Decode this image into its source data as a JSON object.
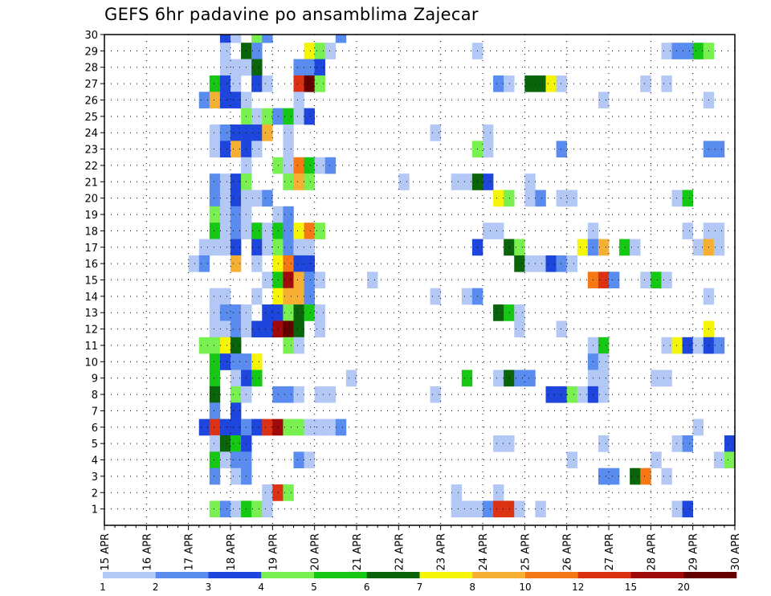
{
  "chart_data": {
    "type": "heatmap",
    "title": "GEFS 6hr padavine po ansamblima Zajecar",
    "xlabel": "",
    "ylabel": "",
    "x_tick_labels": [
      "15 APR",
      "16 APR",
      "17 APR",
      "18 APR",
      "19 APR",
      "20 APR",
      "21 APR",
      "22 APR",
      "23 APR",
      "24 APR",
      "25 APR",
      "26 APR",
      "27 APR",
      "28 APR",
      "29 APR",
      "30 APR"
    ],
    "y_tick_labels": [
      "1",
      "2",
      "3",
      "4",
      "5",
      "6",
      "7",
      "8",
      "9",
      "10",
      "11",
      "12",
      "13",
      "14",
      "15",
      "16",
      "17",
      "18",
      "19",
      "20",
      "21",
      "22",
      "23",
      "24",
      "25",
      "26",
      "27",
      "28",
      "29",
      "30"
    ],
    "x_range": [
      "15 APR",
      "30 APR"
    ],
    "time_step_hours": 6,
    "members_axis": [
      0,
      30
    ],
    "grid": true,
    "colorbar": {
      "position": "bottom",
      "tick_labels": [
        "1",
        "2",
        "3",
        "4",
        "5",
        "6",
        "7",
        "8",
        "10",
        "12",
        "15",
        "20"
      ],
      "colors": [
        "#b4c8f5",
        "#5a8cf0",
        "#1e46dc",
        "#78f050",
        "#14c814",
        "#0a640a",
        "#f5f50a",
        "#f5af32",
        "#f57814",
        "#dc3214",
        "#a00a0a",
        "#640000"
      ]
    },
    "colors": {
      "frame": "#000000",
      "grid": "#000000"
    },
    "cells": [
      [
        11,
        30,
        3
      ],
      [
        12,
        30,
        1
      ],
      [
        14,
        30,
        4
      ],
      [
        15,
        30,
        2
      ],
      [
        22,
        30,
        2
      ],
      [
        11,
        29,
        1
      ],
      [
        13,
        29,
        6
      ],
      [
        14,
        29,
        2
      ],
      [
        19,
        29,
        7
      ],
      [
        20,
        29,
        4
      ],
      [
        21,
        29,
        1
      ],
      [
        35,
        29,
        1
      ],
      [
        53,
        29,
        1
      ],
      [
        54,
        29,
        2
      ],
      [
        55,
        29,
        2
      ],
      [
        56,
        29,
        5
      ],
      [
        57,
        29,
        4
      ],
      [
        11,
        28,
        1
      ],
      [
        12,
        28,
        1
      ],
      [
        13,
        28,
        1
      ],
      [
        14,
        28,
        6
      ],
      [
        18,
        28,
        2
      ],
      [
        19,
        28,
        2
      ],
      [
        20,
        28,
        3
      ],
      [
        10,
        27,
        5
      ],
      [
        11,
        27,
        3
      ],
      [
        12,
        27,
        1
      ],
      [
        14,
        27,
        3
      ],
      [
        15,
        27,
        1
      ],
      [
        18,
        27,
        10
      ],
      [
        19,
        27,
        12
      ],
      [
        20,
        27,
        4
      ],
      [
        37,
        27,
        2
      ],
      [
        38,
        27,
        1
      ],
      [
        40,
        27,
        6
      ],
      [
        41,
        27,
        6
      ],
      [
        42,
        27,
        7
      ],
      [
        43,
        27,
        1
      ],
      [
        51,
        27,
        1
      ],
      [
        53,
        27,
        1
      ],
      [
        9,
        26,
        2
      ],
      [
        10,
        26,
        8
      ],
      [
        11,
        26,
        3
      ],
      [
        12,
        26,
        3
      ],
      [
        13,
        26,
        1
      ],
      [
        18,
        26,
        1
      ],
      [
        47,
        26,
        1
      ],
      [
        57,
        26,
        1
      ],
      [
        13,
        25,
        4
      ],
      [
        14,
        25,
        1
      ],
      [
        15,
        25,
        4
      ],
      [
        16,
        25,
        2
      ],
      [
        17,
        25,
        5
      ],
      [
        18,
        25,
        1
      ],
      [
        19,
        25,
        3
      ],
      [
        10,
        24,
        1
      ],
      [
        11,
        24,
        2
      ],
      [
        12,
        24,
        3
      ],
      [
        13,
        24,
        3
      ],
      [
        14,
        24,
        3
      ],
      [
        15,
        24,
        8
      ],
      [
        17,
        24,
        1
      ],
      [
        31,
        24,
        1
      ],
      [
        36,
        24,
        1
      ],
      [
        10,
        23,
        1
      ],
      [
        11,
        23,
        3
      ],
      [
        12,
        23,
        8
      ],
      [
        13,
        23,
        3
      ],
      [
        14,
        23,
        1
      ],
      [
        17,
        23,
        1
      ],
      [
        35,
        23,
        4
      ],
      [
        36,
        23,
        1
      ],
      [
        43,
        23,
        2
      ],
      [
        57,
        23,
        2
      ],
      [
        58,
        23,
        2
      ],
      [
        13,
        22,
        1
      ],
      [
        16,
        22,
        4
      ],
      [
        17,
        22,
        1
      ],
      [
        18,
        22,
        9
      ],
      [
        19,
        22,
        5
      ],
      [
        20,
        22,
        1
      ],
      [
        21,
        22,
        2
      ],
      [
        10,
        21,
        2
      ],
      [
        11,
        21,
        1
      ],
      [
        12,
        21,
        3
      ],
      [
        13,
        21,
        4
      ],
      [
        17,
        21,
        4
      ],
      [
        18,
        21,
        8
      ],
      [
        19,
        21,
        4
      ],
      [
        28,
        21,
        1
      ],
      [
        33,
        21,
        1
      ],
      [
        34,
        21,
        1
      ],
      [
        35,
        21,
        6
      ],
      [
        36,
        21,
        3
      ],
      [
        40,
        21,
        1
      ],
      [
        10,
        20,
        2
      ],
      [
        11,
        20,
        1
      ],
      [
        12,
        20,
        3
      ],
      [
        13,
        20,
        1
      ],
      [
        14,
        20,
        1
      ],
      [
        15,
        20,
        2
      ],
      [
        37,
        20,
        7
      ],
      [
        38,
        20,
        4
      ],
      [
        40,
        20,
        1
      ],
      [
        41,
        20,
        2
      ],
      [
        43,
        20,
        1
      ],
      [
        44,
        20,
        1
      ],
      [
        54,
        20,
        1
      ],
      [
        55,
        20,
        5
      ],
      [
        10,
        19,
        4
      ],
      [
        11,
        19,
        1
      ],
      [
        12,
        19,
        2
      ],
      [
        13,
        19,
        1
      ],
      [
        16,
        19,
        1
      ],
      [
        17,
        19,
        2
      ],
      [
        10,
        18,
        5
      ],
      [
        11,
        18,
        1
      ],
      [
        12,
        18,
        2
      ],
      [
        13,
        18,
        1
      ],
      [
        14,
        18,
        5
      ],
      [
        15,
        18,
        1
      ],
      [
        16,
        18,
        5
      ],
      [
        17,
        18,
        2
      ],
      [
        18,
        18,
        7
      ],
      [
        19,
        18,
        9
      ],
      [
        20,
        18,
        4
      ],
      [
        36,
        18,
        1
      ],
      [
        37,
        18,
        1
      ],
      [
        46,
        18,
        1
      ],
      [
        55,
        18,
        1
      ],
      [
        57,
        18,
        1
      ],
      [
        58,
        18,
        1
      ],
      [
        9,
        17,
        1
      ],
      [
        10,
        17,
        1
      ],
      [
        11,
        17,
        1
      ],
      [
        12,
        17,
        3
      ],
      [
        14,
        17,
        3
      ],
      [
        15,
        17,
        1
      ],
      [
        16,
        17,
        4
      ],
      [
        17,
        17,
        2
      ],
      [
        18,
        17,
        1
      ],
      [
        19,
        17,
        1
      ],
      [
        35,
        17,
        3
      ],
      [
        38,
        17,
        6
      ],
      [
        39,
        17,
        4
      ],
      [
        45,
        17,
        7
      ],
      [
        46,
        17,
        2
      ],
      [
        47,
        17,
        8
      ],
      [
        49,
        17,
        5
      ],
      [
        50,
        17,
        1
      ],
      [
        56,
        17,
        1
      ],
      [
        57,
        17,
        8
      ],
      [
        58,
        17,
        1
      ],
      [
        8,
        16,
        1
      ],
      [
        9,
        16,
        2
      ],
      [
        12,
        16,
        8
      ],
      [
        14,
        16,
        1
      ],
      [
        16,
        16,
        7
      ],
      [
        17,
        16,
        9
      ],
      [
        18,
        16,
        3
      ],
      [
        19,
        16,
        3
      ],
      [
        39,
        16,
        6
      ],
      [
        40,
        16,
        1
      ],
      [
        41,
        16,
        1
      ],
      [
        42,
        16,
        3
      ],
      [
        43,
        16,
        2
      ],
      [
        44,
        16,
        1
      ],
      [
        15,
        15,
        1
      ],
      [
        16,
        15,
        5
      ],
      [
        17,
        15,
        11
      ],
      [
        18,
        15,
        8
      ],
      [
        19,
        15,
        2
      ],
      [
        20,
        15,
        1
      ],
      [
        25,
        15,
        1
      ],
      [
        46,
        15,
        9
      ],
      [
        47,
        15,
        10
      ],
      [
        48,
        15,
        2
      ],
      [
        51,
        15,
        1
      ],
      [
        52,
        15,
        5
      ],
      [
        53,
        15,
        1
      ],
      [
        10,
        14,
        1
      ],
      [
        11,
        14,
        1
      ],
      [
        14,
        14,
        1
      ],
      [
        16,
        14,
        7
      ],
      [
        17,
        14,
        8
      ],
      [
        18,
        14,
        8
      ],
      [
        19,
        14,
        2
      ],
      [
        31,
        14,
        1
      ],
      [
        34,
        14,
        1
      ],
      [
        35,
        14,
        2
      ],
      [
        57,
        14,
        1
      ],
      [
        10,
        13,
        1
      ],
      [
        11,
        13,
        2
      ],
      [
        12,
        13,
        2
      ],
      [
        13,
        13,
        1
      ],
      [
        15,
        13,
        3
      ],
      [
        16,
        13,
        3
      ],
      [
        17,
        13,
        4
      ],
      [
        18,
        13,
        6
      ],
      [
        19,
        13,
        5
      ],
      [
        20,
        13,
        1
      ],
      [
        37,
        13,
        6
      ],
      [
        38,
        13,
        5
      ],
      [
        39,
        13,
        1
      ],
      [
        10,
        12,
        1
      ],
      [
        11,
        12,
        1
      ],
      [
        12,
        12,
        2
      ],
      [
        13,
        12,
        1
      ],
      [
        14,
        12,
        3
      ],
      [
        15,
        12,
        3
      ],
      [
        16,
        12,
        11
      ],
      [
        17,
        12,
        12
      ],
      [
        18,
        12,
        6
      ],
      [
        20,
        12,
        1
      ],
      [
        39,
        12,
        1
      ],
      [
        43,
        12,
        1
      ],
      [
        57,
        12,
        7
      ],
      [
        9,
        11,
        4
      ],
      [
        10,
        11,
        4
      ],
      [
        11,
        11,
        7
      ],
      [
        12,
        11,
        6
      ],
      [
        17,
        11,
        4
      ],
      [
        18,
        11,
        1
      ],
      [
        46,
        11,
        1
      ],
      [
        47,
        11,
        5
      ],
      [
        53,
        11,
        1
      ],
      [
        54,
        11,
        7
      ],
      [
        55,
        11,
        3
      ],
      [
        56,
        11,
        1
      ],
      [
        57,
        11,
        3
      ],
      [
        58,
        11,
        2
      ],
      [
        10,
        10,
        5
      ],
      [
        11,
        10,
        3
      ],
      [
        12,
        10,
        2
      ],
      [
        13,
        10,
        2
      ],
      [
        14,
        10,
        7
      ],
      [
        46,
        10,
        2
      ],
      [
        47,
        10,
        1
      ],
      [
        10,
        9,
        5
      ],
      [
        12,
        9,
        1
      ],
      [
        13,
        9,
        3
      ],
      [
        14,
        9,
        5
      ],
      [
        23,
        9,
        1
      ],
      [
        34,
        9,
        5
      ],
      [
        37,
        9,
        1
      ],
      [
        38,
        9,
        6
      ],
      [
        39,
        9,
        2
      ],
      [
        40,
        9,
        2
      ],
      [
        52,
        9,
        1
      ],
      [
        53,
        9,
        1
      ],
      [
        46,
        9,
        1
      ],
      [
        47,
        9,
        1
      ],
      [
        10,
        8,
        6
      ],
      [
        12,
        8,
        4
      ],
      [
        13,
        8,
        1
      ],
      [
        16,
        8,
        2
      ],
      [
        17,
        8,
        2
      ],
      [
        18,
        8,
        1
      ],
      [
        20,
        8,
        1
      ],
      [
        21,
        8,
        1
      ],
      [
        31,
        8,
        1
      ],
      [
        42,
        8,
        3
      ],
      [
        43,
        8,
        3
      ],
      [
        44,
        8,
        4
      ],
      [
        45,
        8,
        1
      ],
      [
        46,
        8,
        3
      ],
      [
        47,
        8,
        1
      ],
      [
        10,
        7,
        2
      ],
      [
        12,
        7,
        3
      ],
      [
        9,
        6,
        3
      ],
      [
        10,
        6,
        10
      ],
      [
        11,
        6,
        3
      ],
      [
        12,
        6,
        3
      ],
      [
        13,
        6,
        2
      ],
      [
        14,
        6,
        3
      ],
      [
        15,
        6,
        10
      ],
      [
        16,
        6,
        11
      ],
      [
        17,
        6,
        4
      ],
      [
        18,
        6,
        4
      ],
      [
        19,
        6,
        1
      ],
      [
        20,
        6,
        1
      ],
      [
        21,
        6,
        1
      ],
      [
        22,
        6,
        2
      ],
      [
        56,
        6,
        1
      ],
      [
        10,
        5,
        1
      ],
      [
        11,
        5,
        6
      ],
      [
        12,
        5,
        5
      ],
      [
        13,
        5,
        3
      ],
      [
        37,
        5,
        1
      ],
      [
        38,
        5,
        1
      ],
      [
        47,
        5,
        1
      ],
      [
        54,
        5,
        1
      ],
      [
        55,
        5,
        2
      ],
      [
        59,
        5,
        3
      ],
      [
        10,
        4,
        5
      ],
      [
        11,
        4,
        1
      ],
      [
        12,
        4,
        2
      ],
      [
        13,
        4,
        2
      ],
      [
        18,
        4,
        2
      ],
      [
        19,
        4,
        1
      ],
      [
        44,
        4,
        1
      ],
      [
        52,
        4,
        1
      ],
      [
        58,
        4,
        1
      ],
      [
        59,
        4,
        4
      ],
      [
        10,
        3,
        2
      ],
      [
        12,
        3,
        1
      ],
      [
        13,
        3,
        2
      ],
      [
        47,
        3,
        2
      ],
      [
        48,
        3,
        2
      ],
      [
        50,
        3,
        6
      ],
      [
        51,
        3,
        9
      ],
      [
        53,
        3,
        1
      ],
      [
        15,
        2,
        1
      ],
      [
        16,
        2,
        10
      ],
      [
        17,
        2,
        4
      ],
      [
        33,
        2,
        1
      ],
      [
        37,
        2,
        1
      ],
      [
        10,
        1,
        4
      ],
      [
        11,
        1,
        2
      ],
      [
        12,
        1,
        1
      ],
      [
        13,
        1,
        5
      ],
      [
        14,
        1,
        4
      ],
      [
        15,
        1,
        1
      ],
      [
        33,
        1,
        1
      ],
      [
        34,
        1,
        1
      ],
      [
        35,
        1,
        1
      ],
      [
        36,
        1,
        2
      ],
      [
        37,
        1,
        10
      ],
      [
        38,
        1,
        10
      ],
      [
        39,
        1,
        1
      ],
      [
        41,
        1,
        1
      ],
      [
        54,
        1,
        1
      ],
      [
        55,
        1,
        3
      ]
    ]
  }
}
